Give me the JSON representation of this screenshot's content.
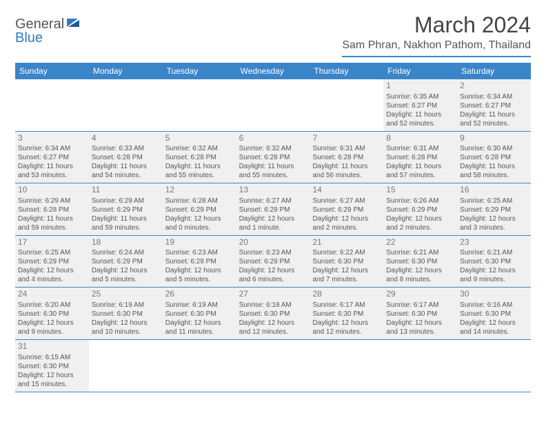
{
  "logo": {
    "general": "General",
    "blue": "Blue"
  },
  "title": "March 2024",
  "location": "Sam Phran, Nakhon Pathom, Thailand",
  "colors": {
    "header_bg": "#3a85c9",
    "header_text": "#ffffff",
    "border": "#3a85c9",
    "dim_bg": "#f0f0f0",
    "body_text": "#555555"
  },
  "day_headers": [
    "Sunday",
    "Monday",
    "Tuesday",
    "Wednesday",
    "Thursday",
    "Friday",
    "Saturday"
  ],
  "weeks": [
    [
      {
        "num": "",
        "dim": false,
        "sunrise": "",
        "sunset": "",
        "daylight_a": "",
        "daylight_b": ""
      },
      {
        "num": "",
        "dim": false,
        "sunrise": "",
        "sunset": "",
        "daylight_a": "",
        "daylight_b": ""
      },
      {
        "num": "",
        "dim": false,
        "sunrise": "",
        "sunset": "",
        "daylight_a": "",
        "daylight_b": ""
      },
      {
        "num": "",
        "dim": false,
        "sunrise": "",
        "sunset": "",
        "daylight_a": "",
        "daylight_b": ""
      },
      {
        "num": "",
        "dim": false,
        "sunrise": "",
        "sunset": "",
        "daylight_a": "",
        "daylight_b": ""
      },
      {
        "num": "1",
        "dim": true,
        "sunrise": "Sunrise: 6:35 AM",
        "sunset": "Sunset: 6:27 PM",
        "daylight_a": "Daylight: 11 hours",
        "daylight_b": "and 52 minutes."
      },
      {
        "num": "2",
        "dim": true,
        "sunrise": "Sunrise: 6:34 AM",
        "sunset": "Sunset: 6:27 PM",
        "daylight_a": "Daylight: 11 hours",
        "daylight_b": "and 52 minutes."
      }
    ],
    [
      {
        "num": "3",
        "dim": true,
        "sunrise": "Sunrise: 6:34 AM",
        "sunset": "Sunset: 6:27 PM",
        "daylight_a": "Daylight: 11 hours",
        "daylight_b": "and 53 minutes."
      },
      {
        "num": "4",
        "dim": true,
        "sunrise": "Sunrise: 6:33 AM",
        "sunset": "Sunset: 6:28 PM",
        "daylight_a": "Daylight: 11 hours",
        "daylight_b": "and 54 minutes."
      },
      {
        "num": "5",
        "dim": true,
        "sunrise": "Sunrise: 6:32 AM",
        "sunset": "Sunset: 6:28 PM",
        "daylight_a": "Daylight: 11 hours",
        "daylight_b": "and 55 minutes."
      },
      {
        "num": "6",
        "dim": true,
        "sunrise": "Sunrise: 6:32 AM",
        "sunset": "Sunset: 6:28 PM",
        "daylight_a": "Daylight: 11 hours",
        "daylight_b": "and 55 minutes."
      },
      {
        "num": "7",
        "dim": true,
        "sunrise": "Sunrise: 6:31 AM",
        "sunset": "Sunset: 6:28 PM",
        "daylight_a": "Daylight: 11 hours",
        "daylight_b": "and 56 minutes."
      },
      {
        "num": "8",
        "dim": true,
        "sunrise": "Sunrise: 6:31 AM",
        "sunset": "Sunset: 6:28 PM",
        "daylight_a": "Daylight: 11 hours",
        "daylight_b": "and 57 minutes."
      },
      {
        "num": "9",
        "dim": true,
        "sunrise": "Sunrise: 6:30 AM",
        "sunset": "Sunset: 6:28 PM",
        "daylight_a": "Daylight: 11 hours",
        "daylight_b": "and 58 minutes."
      }
    ],
    [
      {
        "num": "10",
        "dim": true,
        "sunrise": "Sunrise: 6:29 AM",
        "sunset": "Sunset: 6:28 PM",
        "daylight_a": "Daylight: 11 hours",
        "daylight_b": "and 59 minutes."
      },
      {
        "num": "11",
        "dim": true,
        "sunrise": "Sunrise: 6:29 AM",
        "sunset": "Sunset: 6:29 PM",
        "daylight_a": "Daylight: 11 hours",
        "daylight_b": "and 59 minutes."
      },
      {
        "num": "12",
        "dim": true,
        "sunrise": "Sunrise: 6:28 AM",
        "sunset": "Sunset: 6:29 PM",
        "daylight_a": "Daylight: 12 hours",
        "daylight_b": "and 0 minutes."
      },
      {
        "num": "13",
        "dim": true,
        "sunrise": "Sunrise: 6:27 AM",
        "sunset": "Sunset: 6:29 PM",
        "daylight_a": "Daylight: 12 hours",
        "daylight_b": "and 1 minute."
      },
      {
        "num": "14",
        "dim": true,
        "sunrise": "Sunrise: 6:27 AM",
        "sunset": "Sunset: 6:29 PM",
        "daylight_a": "Daylight: 12 hours",
        "daylight_b": "and 2 minutes."
      },
      {
        "num": "15",
        "dim": true,
        "sunrise": "Sunrise: 6:26 AM",
        "sunset": "Sunset: 6:29 PM",
        "daylight_a": "Daylight: 12 hours",
        "daylight_b": "and 2 minutes."
      },
      {
        "num": "16",
        "dim": true,
        "sunrise": "Sunrise: 6:25 AM",
        "sunset": "Sunset: 6:29 PM",
        "daylight_a": "Daylight: 12 hours",
        "daylight_b": "and 3 minutes."
      }
    ],
    [
      {
        "num": "17",
        "dim": true,
        "sunrise": "Sunrise: 6:25 AM",
        "sunset": "Sunset: 6:29 PM",
        "daylight_a": "Daylight: 12 hours",
        "daylight_b": "and 4 minutes."
      },
      {
        "num": "18",
        "dim": true,
        "sunrise": "Sunrise: 6:24 AM",
        "sunset": "Sunset: 6:29 PM",
        "daylight_a": "Daylight: 12 hours",
        "daylight_b": "and 5 minutes."
      },
      {
        "num": "19",
        "dim": true,
        "sunrise": "Sunrise: 6:23 AM",
        "sunset": "Sunset: 6:29 PM",
        "daylight_a": "Daylight: 12 hours",
        "daylight_b": "and 5 minutes."
      },
      {
        "num": "20",
        "dim": true,
        "sunrise": "Sunrise: 6:23 AM",
        "sunset": "Sunset: 6:29 PM",
        "daylight_a": "Daylight: 12 hours",
        "daylight_b": "and 6 minutes."
      },
      {
        "num": "21",
        "dim": true,
        "sunrise": "Sunrise: 6:22 AM",
        "sunset": "Sunset: 6:30 PM",
        "daylight_a": "Daylight: 12 hours",
        "daylight_b": "and 7 minutes."
      },
      {
        "num": "22",
        "dim": true,
        "sunrise": "Sunrise: 6:21 AM",
        "sunset": "Sunset: 6:30 PM",
        "daylight_a": "Daylight: 12 hours",
        "daylight_b": "and 8 minutes."
      },
      {
        "num": "23",
        "dim": true,
        "sunrise": "Sunrise: 6:21 AM",
        "sunset": "Sunset: 6:30 PM",
        "daylight_a": "Daylight: 12 hours",
        "daylight_b": "and 9 minutes."
      }
    ],
    [
      {
        "num": "24",
        "dim": true,
        "sunrise": "Sunrise: 6:20 AM",
        "sunset": "Sunset: 6:30 PM",
        "daylight_a": "Daylight: 12 hours",
        "daylight_b": "and 9 minutes."
      },
      {
        "num": "25",
        "dim": true,
        "sunrise": "Sunrise: 6:19 AM",
        "sunset": "Sunset: 6:30 PM",
        "daylight_a": "Daylight: 12 hours",
        "daylight_b": "and 10 minutes."
      },
      {
        "num": "26",
        "dim": true,
        "sunrise": "Sunrise: 6:19 AM",
        "sunset": "Sunset: 6:30 PM",
        "daylight_a": "Daylight: 12 hours",
        "daylight_b": "and 11 minutes."
      },
      {
        "num": "27",
        "dim": true,
        "sunrise": "Sunrise: 6:18 AM",
        "sunset": "Sunset: 6:30 PM",
        "daylight_a": "Daylight: 12 hours",
        "daylight_b": "and 12 minutes."
      },
      {
        "num": "28",
        "dim": true,
        "sunrise": "Sunrise: 6:17 AM",
        "sunset": "Sunset: 6:30 PM",
        "daylight_a": "Daylight: 12 hours",
        "daylight_b": "and 12 minutes."
      },
      {
        "num": "29",
        "dim": true,
        "sunrise": "Sunrise: 6:17 AM",
        "sunset": "Sunset: 6:30 PM",
        "daylight_a": "Daylight: 12 hours",
        "daylight_b": "and 13 minutes."
      },
      {
        "num": "30",
        "dim": true,
        "sunrise": "Sunrise: 6:16 AM",
        "sunset": "Sunset: 6:30 PM",
        "daylight_a": "Daylight: 12 hours",
        "daylight_b": "and 14 minutes."
      }
    ],
    [
      {
        "num": "31",
        "dim": true,
        "sunrise": "Sunrise: 6:15 AM",
        "sunset": "Sunset: 6:30 PM",
        "daylight_a": "Daylight: 12 hours",
        "daylight_b": "and 15 minutes."
      },
      {
        "num": "",
        "dim": false,
        "sunrise": "",
        "sunset": "",
        "daylight_a": "",
        "daylight_b": ""
      },
      {
        "num": "",
        "dim": false,
        "sunrise": "",
        "sunset": "",
        "daylight_a": "",
        "daylight_b": ""
      },
      {
        "num": "",
        "dim": false,
        "sunrise": "",
        "sunset": "",
        "daylight_a": "",
        "daylight_b": ""
      },
      {
        "num": "",
        "dim": false,
        "sunrise": "",
        "sunset": "",
        "daylight_a": "",
        "daylight_b": ""
      },
      {
        "num": "",
        "dim": false,
        "sunrise": "",
        "sunset": "",
        "daylight_a": "",
        "daylight_b": ""
      },
      {
        "num": "",
        "dim": false,
        "sunrise": "",
        "sunset": "",
        "daylight_a": "",
        "daylight_b": ""
      }
    ]
  ]
}
